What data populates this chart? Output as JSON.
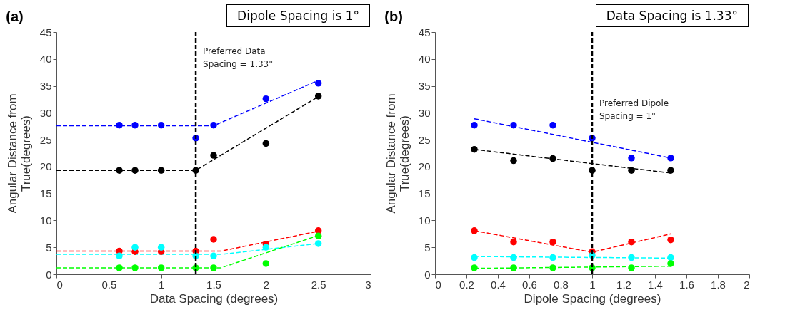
{
  "chart_data": [
    {
      "type": "scatter",
      "title": "(a)",
      "xlabel": "Data Spacing (degrees)",
      "ylabel": "Angular Distance from\nTrue(degrees)",
      "annotations": [
        "Dipole Spacing is 1°"
      ],
      "xlim": [
        0,
        3
      ],
      "xticks": [
        0,
        0.5,
        1,
        1.5,
        2,
        2.5,
        3
      ],
      "ylim": [
        0,
        45
      ],
      "yticks": [
        0,
        5,
        10,
        15,
        20,
        25,
        30,
        35,
        40,
        45
      ],
      "grid": false,
      "marker": "circle",
      "ref_lines": [
        {
          "axis": "x",
          "value": 1.33,
          "label": "Preferred Data\nSpacing = 1.33°",
          "color": "#000000",
          "line_style": "dashed"
        }
      ],
      "series": [
        {
          "type": "scatter",
          "color": "#0000ff",
          "x": [
            0.6,
            0.75,
            1,
            1.33,
            1.5,
            2,
            2.5
          ],
          "values": [
            27.7,
            27.7,
            27.7,
            25.3,
            27.7,
            32.6,
            35.5
          ]
        },
        {
          "type": "scatter",
          "color": "#000000",
          "x": [
            0.6,
            0.75,
            1,
            1.33,
            1.5,
            2,
            2.5
          ],
          "values": [
            19.3,
            19.3,
            19.3,
            19.3,
            22.1,
            24.3,
            33.1
          ]
        },
        {
          "type": "scatter",
          "color": "#ff0000",
          "x": [
            0.6,
            0.75,
            1,
            1.33,
            1.5,
            2,
            2.5
          ],
          "values": [
            4.3,
            4.2,
            4.2,
            4.3,
            6.5,
            5.6,
            8.1
          ]
        },
        {
          "type": "scatter",
          "color": "#00ffff",
          "x": [
            0.6,
            0.75,
            1,
            1.33,
            1.5,
            2,
            2.5
          ],
          "values": [
            3.4,
            5.0,
            5.0,
            3.4,
            3.4,
            5.0,
            5.7
          ]
        },
        {
          "type": "scatter",
          "color": "#00ff00",
          "x": [
            0.6,
            0.75,
            1,
            1.33,
            1.5,
            2,
            2.5
          ],
          "values": [
            1.2,
            1.2,
            1.2,
            1.2,
            1.2,
            2.0,
            7.1
          ]
        },
        {
          "type": "line",
          "color": "#0000ff",
          "line_style": "dashed",
          "marker": "none",
          "x": [
            0,
            1.5,
            2.5
          ],
          "values": [
            27.6,
            27.6,
            36.0
          ]
        },
        {
          "type": "line",
          "color": "#000000",
          "line_style": "dashed",
          "marker": "none",
          "x": [
            0,
            1.33,
            2.5
          ],
          "values": [
            19.3,
            19.3,
            33.0
          ]
        },
        {
          "type": "line",
          "color": "#ff0000",
          "line_style": "dashed",
          "marker": "none",
          "x": [
            0,
            1.57,
            2.5
          ],
          "values": [
            4.3,
            4.3,
            8.0
          ]
        },
        {
          "type": "line",
          "color": "#00ffff",
          "line_style": "dashed",
          "marker": "none",
          "x": [
            0,
            1.57,
            2.5
          ],
          "values": [
            3.7,
            3.7,
            5.7
          ]
        },
        {
          "type": "line",
          "color": "#00ff00",
          "line_style": "dashed",
          "marker": "none",
          "x": [
            0,
            1.57,
            2.5
          ],
          "values": [
            1.2,
            1.2,
            7.2
          ]
        }
      ]
    },
    {
      "type": "scatter",
      "title": "(b)",
      "xlabel": "Dipole Spacing (degrees)",
      "ylabel": "Angular Distance from\nTrue(degrees)",
      "annotations": [
        "Data Spacing is 1.33°"
      ],
      "xlim": [
        0,
        2
      ],
      "xticks": [
        0,
        0.2,
        0.4,
        0.6,
        0.8,
        1,
        1.2,
        1.4,
        1.6,
        1.8,
        2
      ],
      "ylim": [
        0,
        45
      ],
      "yticks": [
        0,
        5,
        10,
        15,
        20,
        25,
        30,
        35,
        40,
        45
      ],
      "grid": false,
      "marker": "circle",
      "ref_lines": [
        {
          "axis": "x",
          "value": 1,
          "label": "Preferred Dipole\nSpacing = 1°",
          "color": "#000000",
          "line_style": "dashed"
        }
      ],
      "series": [
        {
          "type": "scatter",
          "color": "#0000ff",
          "x": [
            0.25,
            0.5,
            0.75,
            1,
            1.25,
            1.5
          ],
          "values": [
            27.7,
            27.7,
            27.7,
            25.3,
            21.6,
            21.6
          ]
        },
        {
          "type": "scatter",
          "color": "#000000",
          "x": [
            0.25,
            0.5,
            0.75,
            1,
            1.25,
            1.5
          ],
          "values": [
            23.2,
            21.1,
            21.5,
            19.3,
            19.3,
            19.3
          ]
        },
        {
          "type": "scatter",
          "color": "#ff0000",
          "x": [
            0.25,
            0.5,
            0.75,
            1,
            1.25,
            1.5
          ],
          "values": [
            8.1,
            6.0,
            6.0,
            4.2,
            6.0,
            6.4
          ]
        },
        {
          "type": "scatter",
          "color": "#00ffff",
          "x": [
            0.25,
            0.5,
            0.75,
            1,
            1.25,
            1.5
          ],
          "values": [
            3.1,
            3.1,
            3.1,
            3.5,
            3.1,
            3.1
          ]
        },
        {
          "type": "scatter",
          "color": "#00ff00",
          "x": [
            0.25,
            0.5,
            0.75,
            1,
            1.25,
            1.5
          ],
          "values": [
            1.2,
            1.2,
            1.2,
            1.2,
            1.2,
            2.0
          ]
        },
        {
          "type": "line",
          "color": "#0000ff",
          "line_style": "dashed",
          "marker": "none",
          "x": [
            0.25,
            1.5
          ],
          "values": [
            28.9,
            21.6
          ]
        },
        {
          "type": "line",
          "color": "#000000",
          "line_style": "dashed",
          "marker": "none",
          "x": [
            0.25,
            1.5
          ],
          "values": [
            23.2,
            18.8
          ]
        },
        {
          "type": "line",
          "color": "#ff0000",
          "line_style": "dashed",
          "marker": "none",
          "x": [
            0.25,
            1,
            1.5
          ],
          "values": [
            8.1,
            4.1,
            7.5
          ]
        },
        {
          "type": "line",
          "color": "#00ffff",
          "line_style": "dashed",
          "marker": "none",
          "x": [
            0.25,
            1.5
          ],
          "values": [
            3.3,
            3.0
          ]
        },
        {
          "type": "line",
          "color": "#00ff00",
          "line_style": "dashed",
          "marker": "none",
          "x": [
            0.25,
            1.5
          ],
          "values": [
            1.1,
            1.5
          ]
        }
      ]
    }
  ]
}
